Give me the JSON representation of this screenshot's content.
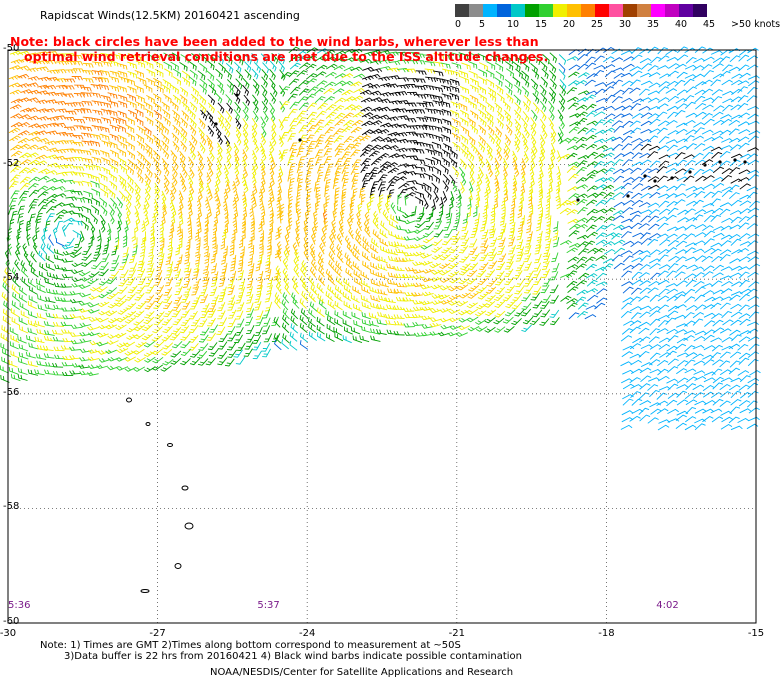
{
  "title": "Rapidscat Winds(12.5KM) 20160421 ascending",
  "note": {
    "line1": "Note: black circles have been added to the wind barbs, wherever less than",
    "line2": "optimal wind retrieval conditions are met due to the ISS altitude changes."
  },
  "colorbar": {
    "colors": [
      "#404040",
      "#8c8c8c",
      "#00b4ff",
      "#0064dc",
      "#00c8c8",
      "#00a000",
      "#30d030",
      "#f0f000",
      "#ffc000",
      "#ff8000",
      "#ff0000",
      "#ff50a0",
      "#a04000",
      "#d08040",
      "#ff00ff",
      "#c000c0",
      "#6000a0",
      "#300060"
    ],
    "labels": [
      "0",
      "5",
      "10",
      "15",
      "20",
      "25",
      "30",
      "35",
      "40",
      "45",
      ">50 knots"
    ]
  },
  "chart_data": {
    "type": "wind-barb map",
    "xlim": [
      -30,
      -15
    ],
    "ylim": [
      -60,
      -50
    ],
    "x_ticks": [
      "-30",
      "-27",
      "-24",
      "-21",
      "-18",
      "-15"
    ],
    "y_ticks": [
      "-50",
      "-52",
      "-54",
      "-56",
      "-58",
      "-60"
    ],
    "times": [
      {
        "label": "5:36",
        "lon": -30
      },
      {
        "label": "5:37",
        "lon": -25
      },
      {
        "label": "4:02",
        "lon": -17
      }
    ],
    "land": "small islands near -27.5 to -26.5 lon, -55.5 to -59.5 lat"
  },
  "footer": {
    "line1": "Note: 1) Times are GMT 2)Times along bottom correspond to measurement at ~50S",
    "line2": "3)Data buffer is 22 hrs from 20160421 4) Black wind barbs indicate possible contamination",
    "credit": "NOAA/NESDIS/Center for Satellite Applications and Research"
  }
}
